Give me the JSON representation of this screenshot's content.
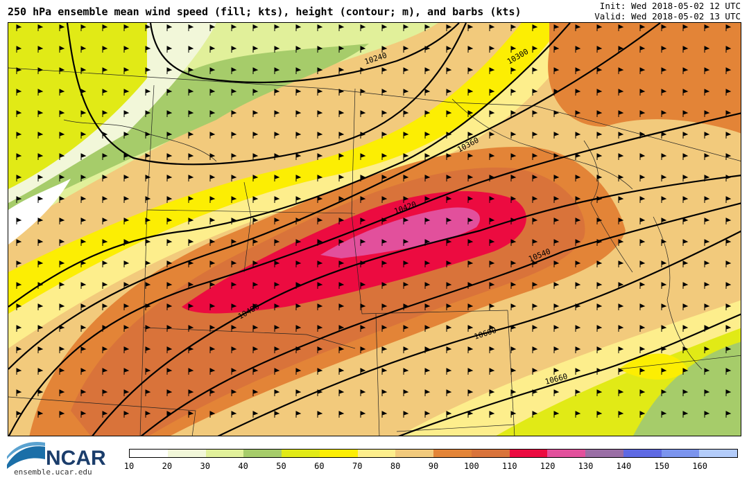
{
  "header": {
    "title": "250 hPa ensemble mean wind speed (fill; kts), height (contour; m), and barbs (kts)",
    "init": "Init: Wed 2018-05-02 12 UTC",
    "valid": "Valid: Wed 2018-05-02 13 UTC"
  },
  "map": {
    "contour_labels": [
      "10240",
      "10300",
      "10360",
      "10420",
      "10480",
      "10540",
      "10600",
      "10660"
    ]
  },
  "colorbar": {
    "ticks": [
      "10",
      "20",
      "30",
      "40",
      "50",
      "60",
      "70",
      "80",
      "90",
      "100",
      "110",
      "120",
      "130",
      "140",
      "150",
      "160"
    ],
    "colors": [
      "#ffffff",
      "#f2f7d9",
      "#e1f09a",
      "#a6cc6a",
      "#e1ea16",
      "#fcee03",
      "#fdee8c",
      "#f2ca7c",
      "#e38437",
      "#d9733a",
      "#ec0b40",
      "#e2509c",
      "#9a6ea5",
      "#5e69e3",
      "#7b94ee",
      "#b3ccfa"
    ]
  },
  "footer": {
    "logo_text": "NCAR",
    "url": "ensemble.ucar.edu"
  }
}
